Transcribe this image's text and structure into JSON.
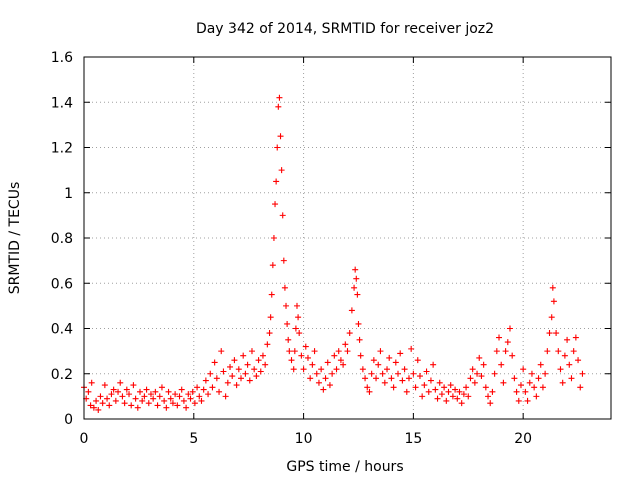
{
  "chart_data": {
    "type": "scatter",
    "title": "Day 342 of 2014, SRMTID for receiver joz2",
    "xlabel": "GPS time / hours",
    "ylabel": "SRMTID / TECUs",
    "xlim": [
      0,
      24
    ],
    "ylim": [
      0,
      1.6
    ],
    "x_ticks": [
      0,
      5,
      10,
      15,
      20
    ],
    "x_tick_labels": [
      "0",
      "5",
      "10",
      "15",
      "20"
    ],
    "y_ticks": [
      0,
      0.2,
      0.4,
      0.6,
      0.8,
      1,
      1.2,
      1.4,
      1.6
    ],
    "y_tick_labels": [
      "0",
      "0.2",
      "0.4",
      "0.6",
      "0.8",
      "1",
      "1.2",
      "1.4",
      "1.6"
    ],
    "grid": true,
    "marker": "+",
    "color": "#ff0000",
    "series": [
      {
        "name": "joz2",
        "points": [
          [
            0.0,
            0.14
          ],
          [
            0.1,
            0.09
          ],
          [
            0.2,
            0.12
          ],
          [
            0.3,
            0.06
          ],
          [
            0.35,
            0.16
          ],
          [
            0.45,
            0.05
          ],
          [
            0.55,
            0.08
          ],
          [
            0.65,
            0.04
          ],
          [
            0.75,
            0.1
          ],
          [
            0.85,
            0.07
          ],
          [
            0.95,
            0.15
          ],
          [
            1.05,
            0.09
          ],
          [
            1.15,
            0.06
          ],
          [
            1.25,
            0.11
          ],
          [
            1.35,
            0.13
          ],
          [
            1.45,
            0.08
          ],
          [
            1.55,
            0.12
          ],
          [
            1.65,
            0.16
          ],
          [
            1.75,
            0.1
          ],
          [
            1.85,
            0.07
          ],
          [
            1.95,
            0.13
          ],
          [
            2.05,
            0.11
          ],
          [
            2.15,
            0.06
          ],
          [
            2.25,
            0.15
          ],
          [
            2.35,
            0.09
          ],
          [
            2.45,
            0.05
          ],
          [
            2.55,
            0.12
          ],
          [
            2.65,
            0.08
          ],
          [
            2.75,
            0.1
          ],
          [
            2.85,
            0.13
          ],
          [
            2.95,
            0.07
          ],
          [
            3.05,
            0.11
          ],
          [
            3.15,
            0.09
          ],
          [
            3.25,
            0.12
          ],
          [
            3.35,
            0.06
          ],
          [
            3.45,
            0.1
          ],
          [
            3.55,
            0.14
          ],
          [
            3.65,
            0.08
          ],
          [
            3.75,
            0.05
          ],
          [
            3.85,
            0.12
          ],
          [
            3.95,
            0.09
          ],
          [
            4.05,
            0.07
          ],
          [
            4.15,
            0.11
          ],
          [
            4.25,
            0.06
          ],
          [
            4.35,
            0.1
          ],
          [
            4.45,
            0.13
          ],
          [
            4.55,
            0.08
          ],
          [
            4.65,
            0.05
          ],
          [
            4.75,
            0.11
          ],
          [
            4.85,
            0.09
          ],
          [
            4.95,
            0.12
          ],
          [
            5.05,
            0.07
          ],
          [
            5.15,
            0.14
          ],
          [
            5.25,
            0.1
          ],
          [
            5.35,
            0.08
          ],
          [
            5.45,
            0.13
          ],
          [
            5.55,
            0.17
          ],
          [
            5.65,
            0.11
          ],
          [
            5.75,
            0.2
          ],
          [
            5.85,
            0.14
          ],
          [
            5.95,
            0.25
          ],
          [
            6.05,
            0.18
          ],
          [
            6.15,
            0.12
          ],
          [
            6.25,
            0.3
          ],
          [
            6.35,
            0.21
          ],
          [
            6.45,
            0.1
          ],
          [
            6.55,
            0.16
          ],
          [
            6.65,
            0.23
          ],
          [
            6.75,
            0.19
          ],
          [
            6.85,
            0.26
          ],
          [
            6.95,
            0.15
          ],
          [
            7.05,
            0.22
          ],
          [
            7.15,
            0.18
          ],
          [
            7.25,
            0.28
          ],
          [
            7.35,
            0.2
          ],
          [
            7.45,
            0.24
          ],
          [
            7.55,
            0.17
          ],
          [
            7.65,
            0.3
          ],
          [
            7.75,
            0.22
          ],
          [
            7.85,
            0.19
          ],
          [
            7.95,
            0.26
          ],
          [
            8.05,
            0.21
          ],
          [
            8.15,
            0.28
          ],
          [
            8.25,
            0.24
          ],
          [
            8.35,
            0.33
          ],
          [
            8.45,
            0.38
          ],
          [
            8.5,
            0.45
          ],
          [
            8.55,
            0.55
          ],
          [
            8.6,
            0.68
          ],
          [
            8.65,
            0.8
          ],
          [
            8.7,
            0.95
          ],
          [
            8.75,
            1.05
          ],
          [
            8.8,
            1.2
          ],
          [
            8.85,
            1.38
          ],
          [
            8.9,
            1.42
          ],
          [
            8.95,
            1.25
          ],
          [
            9.0,
            1.1
          ],
          [
            9.05,
            0.9
          ],
          [
            9.1,
            0.7
          ],
          [
            9.15,
            0.58
          ],
          [
            9.2,
            0.5
          ],
          [
            9.25,
            0.42
          ],
          [
            9.3,
            0.35
          ],
          [
            9.35,
            0.3
          ],
          [
            9.45,
            0.26
          ],
          [
            9.55,
            0.22
          ],
          [
            9.6,
            0.3
          ],
          [
            9.65,
            0.4
          ],
          [
            9.7,
            0.5
          ],
          [
            9.75,
            0.45
          ],
          [
            9.8,
            0.38
          ],
          [
            9.9,
            0.28
          ],
          [
            10.0,
            0.22
          ],
          [
            10.1,
            0.32
          ],
          [
            10.2,
            0.27
          ],
          [
            10.3,
            0.18
          ],
          [
            10.4,
            0.24
          ],
          [
            10.5,
            0.3
          ],
          [
            10.6,
            0.2
          ],
          [
            10.7,
            0.16
          ],
          [
            10.8,
            0.22
          ],
          [
            10.9,
            0.13
          ],
          [
            11.0,
            0.18
          ],
          [
            11.1,
            0.25
          ],
          [
            11.2,
            0.15
          ],
          [
            11.3,
            0.2
          ],
          [
            11.4,
            0.28
          ],
          [
            11.5,
            0.22
          ],
          [
            11.6,
            0.3
          ],
          [
            11.7,
            0.26
          ],
          [
            11.8,
            0.24
          ],
          [
            11.9,
            0.33
          ],
          [
            12.0,
            0.3
          ],
          [
            12.1,
            0.38
          ],
          [
            12.2,
            0.48
          ],
          [
            12.3,
            0.58
          ],
          [
            12.35,
            0.66
          ],
          [
            12.4,
            0.62
          ],
          [
            12.45,
            0.55
          ],
          [
            12.5,
            0.42
          ],
          [
            12.55,
            0.35
          ],
          [
            12.6,
            0.28
          ],
          [
            12.7,
            0.22
          ],
          [
            12.8,
            0.18
          ],
          [
            12.9,
            0.14
          ],
          [
            13.0,
            0.12
          ],
          [
            13.1,
            0.2
          ],
          [
            13.2,
            0.26
          ],
          [
            13.3,
            0.18
          ],
          [
            13.4,
            0.24
          ],
          [
            13.5,
            0.3
          ],
          [
            13.6,
            0.2
          ],
          [
            13.7,
            0.16
          ],
          [
            13.8,
            0.22
          ],
          [
            13.9,
            0.27
          ],
          [
            14.0,
            0.18
          ],
          [
            14.1,
            0.14
          ],
          [
            14.2,
            0.25
          ],
          [
            14.3,
            0.2
          ],
          [
            14.4,
            0.29
          ],
          [
            14.5,
            0.17
          ],
          [
            14.6,
            0.22
          ],
          [
            14.7,
            0.12
          ],
          [
            14.8,
            0.18
          ],
          [
            14.9,
            0.31
          ],
          [
            15.0,
            0.2
          ],
          [
            15.1,
            0.14
          ],
          [
            15.2,
            0.26
          ],
          [
            15.3,
            0.19
          ],
          [
            15.4,
            0.1
          ],
          [
            15.5,
            0.15
          ],
          [
            15.6,
            0.21
          ],
          [
            15.7,
            0.12
          ],
          [
            15.8,
            0.17
          ],
          [
            15.9,
            0.24
          ],
          [
            16.0,
            0.13
          ],
          [
            16.1,
            0.09
          ],
          [
            16.2,
            0.16
          ],
          [
            16.3,
            0.11
          ],
          [
            16.4,
            0.14
          ],
          [
            16.5,
            0.08
          ],
          [
            16.6,
            0.12
          ],
          [
            16.7,
            0.15
          ],
          [
            16.8,
            0.1
          ],
          [
            16.9,
            0.13
          ],
          [
            17.0,
            0.09
          ],
          [
            17.1,
            0.12
          ],
          [
            17.2,
            0.07
          ],
          [
            17.3,
            0.11
          ],
          [
            17.4,
            0.14
          ],
          [
            17.5,
            0.1
          ],
          [
            17.6,
            0.18
          ],
          [
            17.7,
            0.22
          ],
          [
            17.8,
            0.16
          ],
          [
            17.9,
            0.2
          ],
          [
            18.0,
            0.27
          ],
          [
            18.1,
            0.19
          ],
          [
            18.2,
            0.24
          ],
          [
            18.3,
            0.14
          ],
          [
            18.4,
            0.1
          ],
          [
            18.5,
            0.07
          ],
          [
            18.6,
            0.12
          ],
          [
            18.7,
            0.2
          ],
          [
            18.8,
            0.3
          ],
          [
            18.9,
            0.36
          ],
          [
            19.0,
            0.24
          ],
          [
            19.1,
            0.16
          ],
          [
            19.2,
            0.3
          ],
          [
            19.3,
            0.34
          ],
          [
            19.4,
            0.4
          ],
          [
            19.5,
            0.28
          ],
          [
            19.6,
            0.18
          ],
          [
            19.7,
            0.12
          ],
          [
            19.8,
            0.08
          ],
          [
            19.9,
            0.15
          ],
          [
            20.0,
            0.22
          ],
          [
            20.1,
            0.12
          ],
          [
            20.2,
            0.08
          ],
          [
            20.3,
            0.16
          ],
          [
            20.4,
            0.2
          ],
          [
            20.5,
            0.14
          ],
          [
            20.6,
            0.1
          ],
          [
            20.7,
            0.18
          ],
          [
            20.8,
            0.24
          ],
          [
            20.9,
            0.14
          ],
          [
            21.0,
            0.2
          ],
          [
            21.1,
            0.3
          ],
          [
            21.2,
            0.38
          ],
          [
            21.3,
            0.45
          ],
          [
            21.35,
            0.58
          ],
          [
            21.4,
            0.52
          ],
          [
            21.5,
            0.38
          ],
          [
            21.6,
            0.3
          ],
          [
            21.7,
            0.22
          ],
          [
            21.8,
            0.16
          ],
          [
            21.9,
            0.28
          ],
          [
            22.0,
            0.35
          ],
          [
            22.1,
            0.24
          ],
          [
            22.2,
            0.18
          ],
          [
            22.3,
            0.3
          ],
          [
            22.4,
            0.36
          ],
          [
            22.5,
            0.26
          ],
          [
            22.6,
            0.14
          ],
          [
            22.7,
            0.2
          ]
        ]
      }
    ]
  }
}
